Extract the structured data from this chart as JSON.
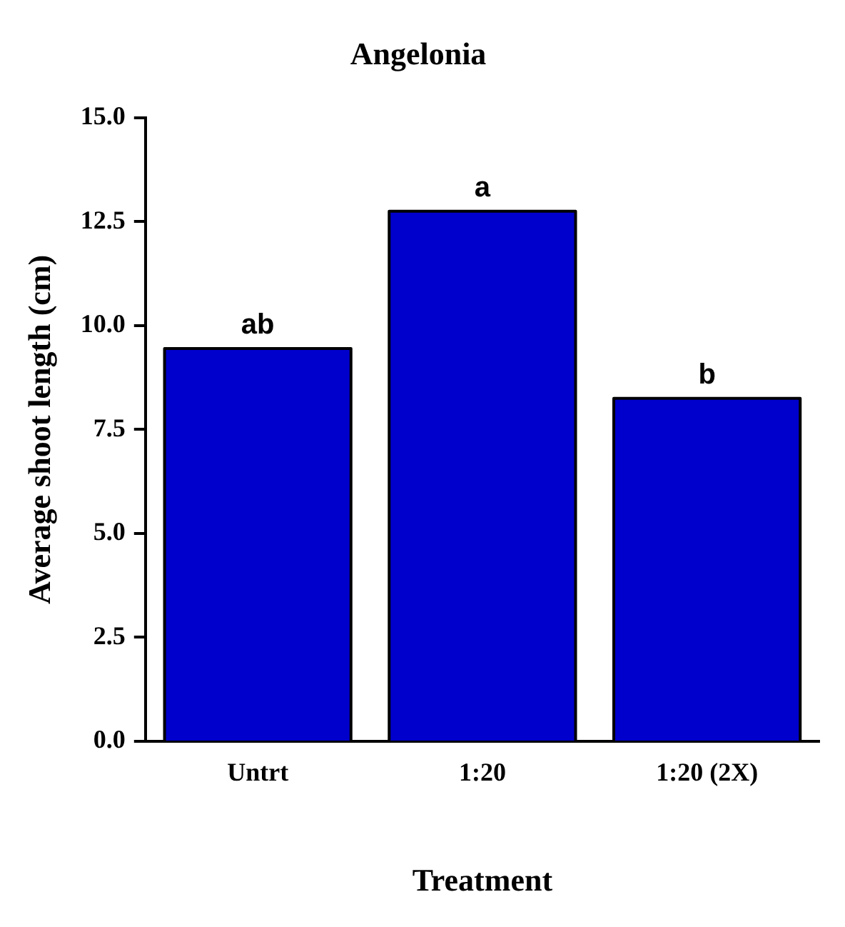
{
  "chart_data": {
    "type": "bar",
    "title": "Angelonia",
    "xlabel": "Treatment",
    "ylabel": "Average shoot length (cm)",
    "categories": [
      "Untrt",
      "1:20",
      "1:20 (2X)"
    ],
    "values": [
      9.45,
      12.75,
      8.25
    ],
    "color": "#0000cc",
    "ylim": [
      0,
      15
    ],
    "yticks": [
      {
        "value": 0,
        "label": "0.0"
      },
      {
        "value": 2.5,
        "label": "2.5"
      },
      {
        "value": 5,
        "label": "5.0"
      },
      {
        "value": 7.5,
        "label": "7.5"
      },
      {
        "value": 10,
        "label": "10.0"
      },
      {
        "value": 12.5,
        "label": "12.5"
      },
      {
        "value": 15,
        "label": "15.0"
      }
    ],
    "grid": false,
    "legend": false,
    "annotations": [
      {
        "text": "ab",
        "x": "Untrt",
        "y": 9.45
      },
      {
        "text": "a",
        "x": "1:20",
        "y": 12.75
      },
      {
        "text": "b",
        "x": "1:20 (2X)",
        "y": 8.25
      }
    ]
  }
}
